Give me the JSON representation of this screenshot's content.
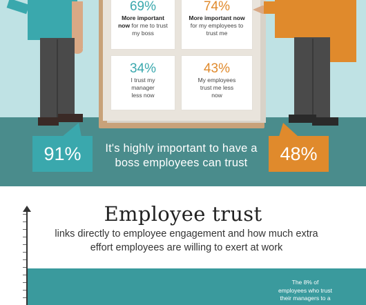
{
  "board": {
    "cards": [
      {
        "pct": "69%",
        "bold": "More important now",
        "rest": "for me to trust my boss"
      },
      {
        "pct": "74%",
        "bold": "More important now",
        "rest": "for my employees to trust me"
      },
      {
        "pct": "34%",
        "bold": "",
        "rest": "I trust my manager less now"
      },
      {
        "pct": "43%",
        "bold": "",
        "rest": "My employees trust me less now"
      }
    ]
  },
  "stats": {
    "left_pct": "91%",
    "right_pct": "48%",
    "tagline": "It's highly important to have a boss employees can trust"
  },
  "section": {
    "title": "Employee trust",
    "subtitle": "links directly to employee engagement and how much extra effort employees are willing to exert at work",
    "note": "The 8% of employees who trust their managers to a"
  },
  "colors": {
    "teal": "#3aa8ad",
    "orange": "#e08a2c",
    "background": "#bfe2e4",
    "floor": "#4a8c8c"
  }
}
